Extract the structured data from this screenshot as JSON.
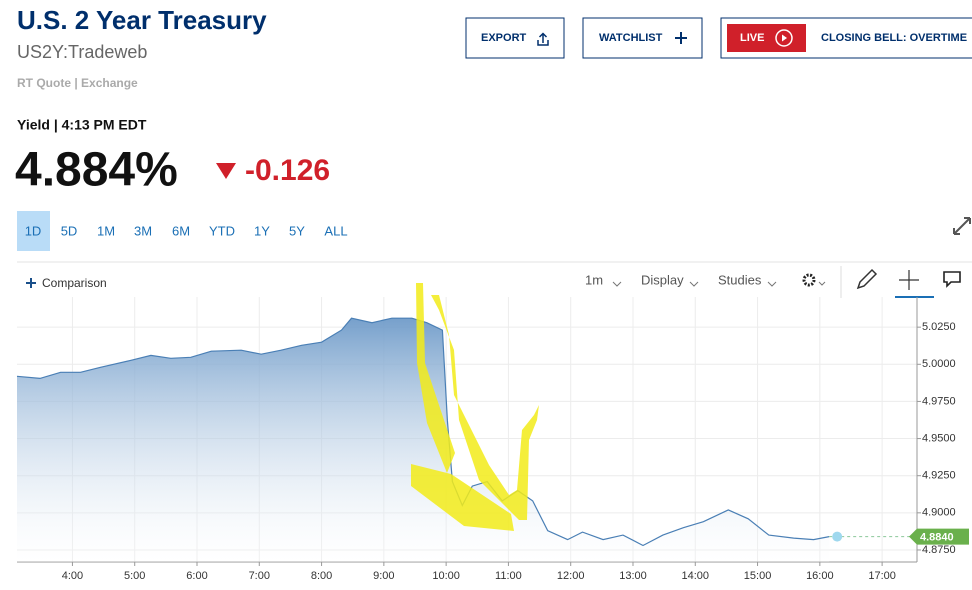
{
  "header": {
    "title": "U.S. 2 Year Treasury",
    "symbol": "US2Y:Tradeweb",
    "source": "RT Quote | Exchange"
  },
  "buttons": {
    "export": "EXPORT",
    "watchlist": "WATCHLIST",
    "live": "LIVE",
    "show": "CLOSING BELL: OVERTIME"
  },
  "quote": {
    "label": "Yield | 4:13 PM EDT",
    "last": "4.884%",
    "change": "-0.126"
  },
  "ranges": [
    "1D",
    "5D",
    "1M",
    "3M",
    "6M",
    "YTD",
    "1Y",
    "5Y",
    "ALL"
  ],
  "toolbar": {
    "comparison": "Comparison",
    "interval": "1m",
    "display": "Display",
    "studies": "Studies"
  },
  "chart_data": {
    "type": "area",
    "color": "#4a7fb5",
    "grid": true,
    "x": [
      3.11,
      3.48,
      3.81,
      4.13,
      4.45,
      4.94,
      5.26,
      5.58,
      5.9,
      6.23,
      6.71,
      7.03,
      7.35,
      7.68,
      8.0,
      8.32,
      8.48,
      8.81,
      9.13,
      9.45,
      9.69,
      9.94,
      10.02,
      10.1,
      10.26,
      10.42,
      10.66,
      10.9,
      11.15,
      11.39,
      11.63,
      11.95,
      12.19,
      12.52,
      12.84,
      13.16,
      13.48,
      13.81,
      14.13,
      14.53,
      14.85,
      15.18,
      15.58,
      15.9,
      16.15
    ],
    "values": [
      4.9919,
      4.9905,
      4.9946,
      4.9946,
      4.998,
      5.0027,
      5.006,
      5.004,
      5.0047,
      5.0088,
      5.0095,
      5.0068,
      5.0095,
      5.0128,
      5.0149,
      5.023,
      5.031,
      5.028,
      5.031,
      5.031,
      5.028,
      5.023,
      4.962,
      4.921,
      4.905,
      4.918,
      4.921,
      4.908,
      4.915,
      4.908,
      4.888,
      4.882,
      4.887,
      4.882,
      4.885,
      4.878,
      4.885,
      4.89,
      4.894,
      4.902,
      4.896,
      4.885,
      4.883,
      4.882,
      4.884
    ],
    "xlim": [
      3.11,
      17.56
    ],
    "ylim": [
      4.8669,
      5.0453
    ],
    "xticks": [
      {
        "value": 4,
        "label": "4:00"
      },
      {
        "value": 5,
        "label": "5:00"
      },
      {
        "value": 6,
        "label": "6:00"
      },
      {
        "value": 7,
        "label": "7:00"
      },
      {
        "value": 8,
        "label": "8:00"
      },
      {
        "value": 9,
        "label": "9:00"
      },
      {
        "value": 10,
        "label": "10:00"
      },
      {
        "value": 11,
        "label": "11:00"
      },
      {
        "value": 12,
        "label": "12:00"
      },
      {
        "value": 13,
        "label": "13:00"
      },
      {
        "value": 14,
        "label": "14:00"
      },
      {
        "value": 15,
        "label": "15:00"
      },
      {
        "value": 16,
        "label": "16:00"
      },
      {
        "value": 17,
        "label": "17:00"
      }
    ],
    "yticks": [
      {
        "value": 4.875,
        "label": "4.8750"
      },
      {
        "value": 4.9,
        "label": "4.9000"
      },
      {
        "value": 4.925,
        "label": "4.9250"
      },
      {
        "value": 4.95,
        "label": "4.9500"
      },
      {
        "value": 4.975,
        "label": "4.9750"
      },
      {
        "value": 5.0,
        "label": "5.0000"
      },
      {
        "value": 5.025,
        "label": "5.0250"
      }
    ],
    "current": {
      "value": 4.884,
      "label": "4.8840"
    }
  }
}
